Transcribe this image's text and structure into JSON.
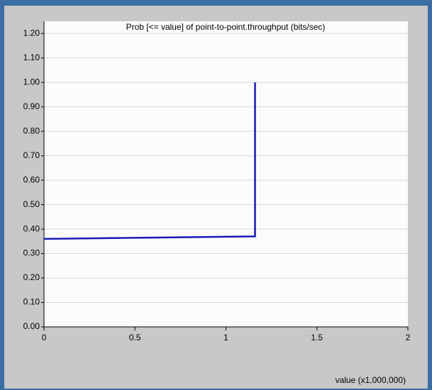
{
  "chart_data": {
    "type": "line",
    "title": "Prob [<= value] of point-to-point.throughput (bits/sec)",
    "x_label": "value (x1,000,000)",
    "series": [
      {
        "name": "point-to-point.throughput",
        "color": "#1a1ab8",
        "x": [
          0,
          1.16,
          1.16
        ],
        "values": [
          0.36,
          0.37,
          1.0
        ]
      }
    ],
    "xlim": [
      0,
      2
    ],
    "xticks": [
      0,
      0.5,
      1,
      1.5,
      2
    ],
    "ylim": [
      0,
      1.25
    ],
    "yticks": [
      {
        "value": 0,
        "label": "0.00"
      },
      {
        "value": 0.1,
        "label": "0.10"
      },
      {
        "value": 0.2,
        "label": "0.20"
      },
      {
        "value": 0.3,
        "label": "0.30"
      },
      {
        "value": 0.4,
        "label": "0.40"
      },
      {
        "value": 0.5,
        "label": "0.50"
      },
      {
        "value": 0.6,
        "label": "0.60"
      },
      {
        "value": 0.7,
        "label": "0.70"
      },
      {
        "value": 0.8,
        "label": "0.80"
      },
      {
        "value": 0.9,
        "label": "0.90"
      },
      {
        "value": 1.0,
        "label": "1.00"
      },
      {
        "value": 1.1,
        "label": "1.10"
      },
      {
        "value": 1.2,
        "label": "1.20"
      }
    ],
    "grid": true
  }
}
